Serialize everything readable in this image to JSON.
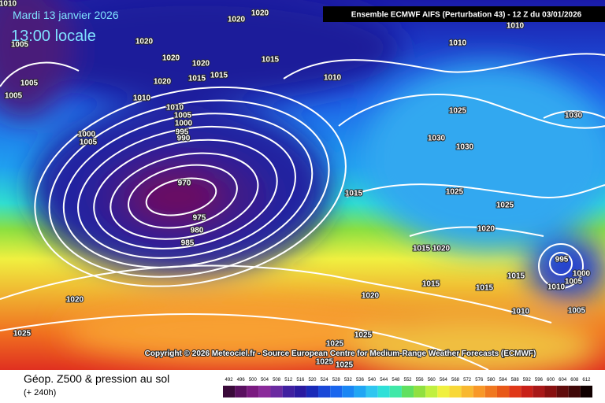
{
  "map": {
    "date": "Mardi 13 janvier 2026",
    "local_time": "13:00 locale",
    "run": "Ensemble ECMWF AIFS  (Perturbation 43)  -  12 Z du 03/01/2026",
    "copyright": "Copyright © 2026 Meteociel.fr - Source European Centre for Medium-Range Weather Forecasts (ECMWF)",
    "isobar_labels": [
      "1010",
      "1020",
      "1020",
      "1005",
      "1020",
      "1015",
      "1020",
      "1020",
      "1015",
      "1015",
      "1010",
      "1005",
      "1020",
      "1005",
      "1010",
      "1010",
      "1005",
      "1000",
      "995",
      "990",
      "1005",
      "1000",
      "970",
      "975",
      "980",
      "985",
      "1015",
      "1025",
      "1030",
      "1030",
      "1030",
      "1025",
      "1025",
      "1020",
      "1015",
      "1020",
      "995",
      "1000",
      "1005",
      "1015",
      "1010",
      "1015",
      "1015",
      "1020",
      "1020",
      "1010",
      "1005",
      "1025",
      "1025",
      "1025",
      "1025",
      "1025",
      "1010",
      "1010"
    ]
  },
  "footer": {
    "title": "Géop. Z500 & pression au sol",
    "lead": "(+ 240h)"
  },
  "legend": {
    "values": [
      492,
      496,
      500,
      504,
      508,
      512,
      516,
      520,
      524,
      528,
      532,
      536,
      540,
      544,
      548,
      552,
      556,
      560,
      564,
      568,
      572,
      576,
      580,
      584,
      588,
      592,
      596,
      600,
      604,
      608,
      612
    ],
    "colors": [
      "#3a0a3a",
      "#5a1060",
      "#7a1a80",
      "#8a2a9a",
      "#6a2aa0",
      "#4020a0",
      "#2a1aa0",
      "#1a2ab8",
      "#1a48d8",
      "#1a66ee",
      "#1a86f4",
      "#20a6f4",
      "#30c6f0",
      "#30e0d8",
      "#40e8a8",
      "#60e060",
      "#90e040",
      "#c0f040",
      "#f0f040",
      "#f8d838",
      "#f8b830",
      "#f89828",
      "#f07820",
      "#e85818",
      "#e03818",
      "#c82018",
      "#a81818",
      "#881010",
      "#600c0c",
      "#400808",
      "#100000"
    ]
  }
}
